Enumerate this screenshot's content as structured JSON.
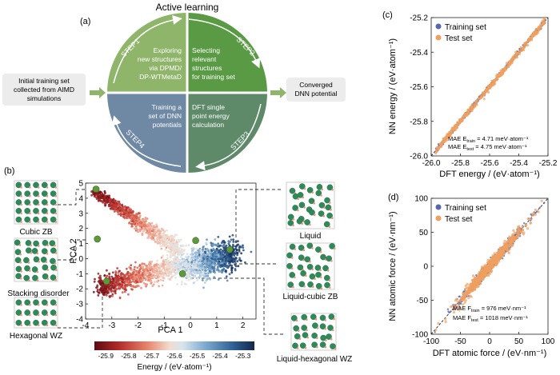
{
  "panel_labels": {
    "a": "(a)",
    "b": "(b)",
    "c": "(c)",
    "d": "(d)"
  },
  "workflow": {
    "title": "Active learning",
    "initial": [
      "Initial training set",
      "collected from AIMD",
      "simulations"
    ],
    "final": [
      "Converged",
      "DNN potential"
    ],
    "steps": [
      {
        "label": "STEP1",
        "lines": [
          "Exploring",
          "new structures",
          "via DPMD/",
          "DP-WTMetaD"
        ],
        "color": "#8fb56a"
      },
      {
        "label": "STEP2",
        "lines": [
          "Selecting",
          "relevant",
          "structures",
          "for training set"
        ],
        "color": "#5a9a44"
      },
      {
        "label": "STEP3",
        "lines": [
          "DFT single",
          "point energy",
          "calculation"
        ],
        "color": "#5f8a6a"
      },
      {
        "label": "STEP4",
        "lines": [
          "Training a",
          "set of DNN",
          "potentials"
        ],
        "color": "#6f88a3"
      }
    ]
  },
  "structures": {
    "left": [
      "Cubic ZB",
      "Stacking disorder",
      "Hexagonal WZ"
    ],
    "right": [
      "Liquid",
      "Liquid-cubic ZB",
      "Liquid-hexagonal WZ"
    ]
  },
  "chart_data": [
    {
      "type": "scatter",
      "xlabel": "PCA 1",
      "ylabel": "PCA 2",
      "xlim": [
        -4,
        2.5
      ],
      "ylim": [
        -4,
        5
      ],
      "xticks": [
        "-4",
        "-3",
        "-2",
        "-1",
        "0",
        "1",
        "2"
      ],
      "yticks": [
        "-4",
        "-3",
        "-2",
        "-1",
        "0",
        "1",
        "2",
        "3",
        "4",
        "5"
      ],
      "markers": [
        {
          "x": -3.6,
          "y": 4.6
        },
        {
          "x": -3.55,
          "y": 1.3
        },
        {
          "x": -3.2,
          "y": -1.5
        },
        {
          "x": 1.5,
          "y": 0.6
        },
        {
          "x": -0.3,
          "y": -1.0
        },
        {
          "x": 0.2,
          "y": 1.2
        }
      ],
      "colorbar": {
        "label": "Energy / (eV·atom⁻¹)",
        "ticks": [
          "-25.9",
          "-25.8",
          "-25.7",
          "-25.6",
          "-25.5",
          "-25.4",
          "-25.3"
        ],
        "range": [
          -25.95,
          -25.25
        ],
        "cmap": [
          "#5b0a10",
          "#b22a2a",
          "#e8836a",
          "#f2dccf",
          "#d8e4ee",
          "#7aa7cc",
          "#2c5f92",
          "#15264d"
        ]
      }
    },
    {
      "type": "scatter",
      "xlabel": "DFT energy / (eV·atom⁻¹)",
      "ylabel": "NN energy / (eV·atom⁻¹)",
      "xlim": [
        -26.0,
        -25.2
      ],
      "ylim": [
        -26.0,
        -25.2
      ],
      "xticks": [
        "-26.0",
        "-25.8",
        "-25.6",
        "-25.4",
        "-25.2"
      ],
      "yticks": [
        "-26.0",
        "-25.8",
        "-25.6",
        "-25.4",
        "-25.2"
      ],
      "series": [
        {
          "name": "Training set",
          "color": "#5868a8"
        },
        {
          "name": "Test set",
          "color": "#f0a060"
        }
      ],
      "mae": [
        "MAE E",
        "train",
        " = 4.71 meV·atom⁻¹",
        "MAE E",
        "test",
        " = 4.75 meV·atom⁻¹"
      ]
    },
    {
      "type": "scatter",
      "xlabel": "DFT atomic force / (eV·nm⁻¹)",
      "ylabel": "NN atomic force / (eV·nm⁻¹)",
      "xlim": [
        -100,
        100
      ],
      "ylim": [
        -100,
        100
      ],
      "xticks": [
        "-100",
        "-50",
        "0",
        "50",
        "100"
      ],
      "yticks": [
        "-100",
        "-50",
        "0",
        "50",
        "100"
      ],
      "series": [
        {
          "name": "Training set",
          "color": "#5868a8"
        },
        {
          "name": "Test set",
          "color": "#f0a060"
        }
      ],
      "mae": [
        "MAE F",
        "train",
        " = 976 meV·nm⁻¹",
        "MAE F",
        "test",
        " = 1018 meV·nm⁻¹"
      ]
    }
  ]
}
